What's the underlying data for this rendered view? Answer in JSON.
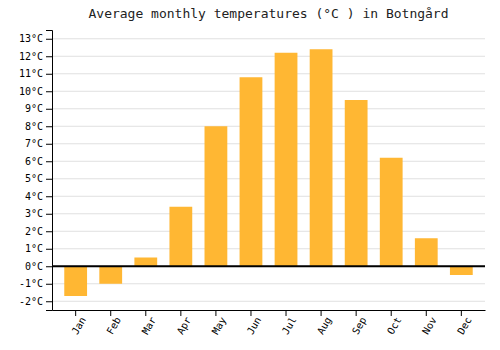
{
  "chart_data": {
    "type": "bar",
    "title": "Average monthly temperatures (°C ) in Botngård",
    "categories": [
      "Jan",
      "Feb",
      "Mar",
      "Apr",
      "May",
      "Jun",
      "Jul",
      "Aug",
      "Sep",
      "Oct",
      "Nov",
      "Dec"
    ],
    "values": [
      -1.7,
      -1.0,
      0.5,
      3.4,
      8.0,
      10.8,
      12.2,
      12.4,
      9.5,
      6.2,
      1.6,
      -0.5
    ],
    "color": "#FFB733",
    "ylim": [
      -2.5,
      13.5
    ],
    "yticks": [
      {
        "value": -2,
        "label": "-2°C"
      },
      {
        "value": -1,
        "label": "-1°C"
      },
      {
        "value": 0,
        "label": "0°C"
      },
      {
        "value": 1,
        "label": "1°C"
      },
      {
        "value": 2,
        "label": "2°C"
      },
      {
        "value": 3,
        "label": "3°C"
      },
      {
        "value": 4,
        "label": "4°C"
      },
      {
        "value": 5,
        "label": "5°C"
      },
      {
        "value": 6,
        "label": "6°C"
      },
      {
        "value": 7,
        "label": "7°C"
      },
      {
        "value": 8,
        "label": "8°C"
      },
      {
        "value": 9,
        "label": "9°C"
      },
      {
        "value": 10,
        "label": "10°C"
      },
      {
        "value": 11,
        "label": "11°C"
      },
      {
        "value": 12,
        "label": "12°C"
      },
      {
        "value": 13,
        "label": "13°C"
      }
    ],
    "grid": true
  }
}
